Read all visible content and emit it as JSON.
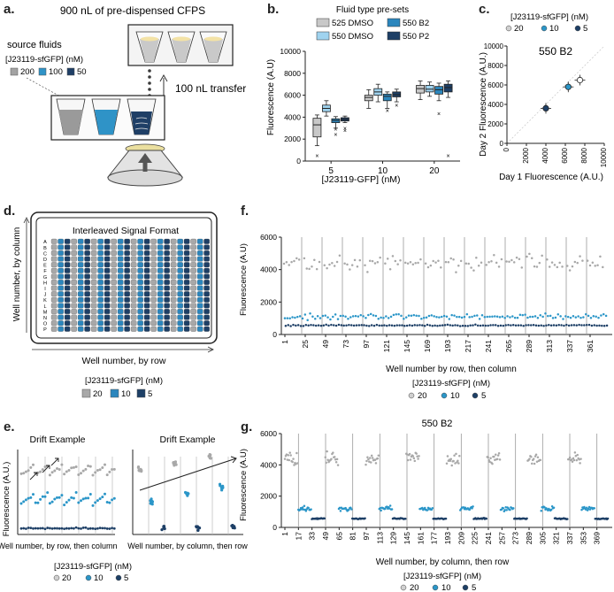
{
  "panel_labels": {
    "a": "a.",
    "b": "b.",
    "c": "c.",
    "d": "d.",
    "e": "e.",
    "f": "f.",
    "g": "g."
  },
  "panel_a": {
    "top_label": "900 nL of pre-dispensed CFPS",
    "source_title": "source fluids",
    "source_subtitle": "[J23119-sfGFP] (nM)",
    "legend": [
      {
        "label": "200",
        "color": "#a3a3a3"
      },
      {
        "label": "100",
        "color": "#2f93c7"
      },
      {
        "label": "50",
        "color": "#1f3f66"
      }
    ],
    "transfer_label": "100 nL transfer"
  },
  "colors": {
    "c20": "#a8a8a8",
    "c10": "#2b96c8",
    "c5": "#1d3f66",
    "dmso525": "#c8c8c8",
    "dmso550": "#9fd3ef",
    "b2": "#2b86bd",
    "p2": "#1d3f66"
  },
  "panel_b": {
    "chart_data": {
      "type": "box",
      "title": "Fluid type pre-sets",
      "legend": [
        "525 DMSO",
        "550 DMSO",
        "550 B2",
        "550 P2"
      ],
      "xlabel": "[J23119-GFP] (nM)",
      "ylabel": "Fluorescence (A.U)",
      "categories": [
        "5",
        "10",
        "20"
      ],
      "ylim": [
        0,
        10000
      ],
      "yticks": [
        0,
        2000,
        4000,
        6000,
        8000,
        10000
      ],
      "groups": [
        {
          "cat": "5",
          "boxes": [
            {
              "series": "525 DMSO",
              "min": 1400,
              "q1": 2200,
              "median": 3300,
              "q3": 3900,
              "max": 4200,
              "outliers": [
                500
              ]
            },
            {
              "series": "550 DMSO",
              "min": 4100,
              "q1": 4500,
              "median": 4800,
              "q3": 5100,
              "max": 5500,
              "outliers": []
            },
            {
              "series": "550 B2",
              "min": 3000,
              "q1": 3500,
              "median": 3700,
              "q3": 3850,
              "max": 4050,
              "outliers": [
                2900,
                2400
              ]
            },
            {
              "series": "550 P2",
              "min": 3500,
              "q1": 3650,
              "median": 3800,
              "q3": 3950,
              "max": 4100,
              "outliers": [
                3000,
                2800
              ]
            }
          ]
        },
        {
          "cat": "10",
          "boxes": [
            {
              "series": "525 DMSO",
              "min": 4800,
              "q1": 5500,
              "median": 5800,
              "q3": 6000,
              "max": 6500,
              "outliers": []
            },
            {
              "series": "550 DMSO",
              "min": 5400,
              "q1": 6000,
              "median": 6300,
              "q3": 6600,
              "max": 7000,
              "outliers": []
            },
            {
              "series": "550 B2",
              "min": 4800,
              "q1": 5500,
              "median": 5900,
              "q3": 6100,
              "max": 6300,
              "outliers": [
                4600
              ]
            },
            {
              "series": "550 P2",
              "min": 5400,
              "q1": 5850,
              "median": 6050,
              "q3": 6300,
              "max": 6550,
              "outliers": [
                5100
              ]
            }
          ]
        },
        {
          "cat": "20",
          "boxes": [
            {
              "series": "525 DMSO",
              "min": 5600,
              "q1": 6200,
              "median": 6600,
              "q3": 6900,
              "max": 7300,
              "outliers": []
            },
            {
              "series": "550 DMSO",
              "min": 5900,
              "q1": 6300,
              "median": 6550,
              "q3": 6900,
              "max": 7200,
              "outliers": []
            },
            {
              "series": "550 B2",
              "min": 5500,
              "q1": 6100,
              "median": 6500,
              "q3": 6800,
              "max": 7100,
              "outliers": [
                4300
              ]
            },
            {
              "series": "550 P2",
              "min": 5800,
              "q1": 6300,
              "median": 6700,
              "q3": 7000,
              "max": 7300,
              "outliers": [
                500
              ]
            }
          ]
        }
      ]
    }
  },
  "panel_c": {
    "chart_data": {
      "type": "scatter",
      "title": "550 B2",
      "legend_title": "[J23119-sfGFP] (nM)",
      "legend": [
        "20",
        "10",
        "5"
      ],
      "xlabel": "Day 1 Fluorescence (A.U.)",
      "ylabel": "Day 2 Fluorescence (A.U.)",
      "xlim": [
        0,
        10000
      ],
      "ylim": [
        0,
        10000
      ],
      "xticks": [
        0,
        2000,
        4000,
        6000,
        8000,
        10000
      ],
      "yticks": [
        0,
        2000,
        4000,
        6000,
        8000,
        10000
      ],
      "points": [
        {
          "x": 4000,
          "y": 3600,
          "conc": "5"
        },
        {
          "x": 6300,
          "y": 5800,
          "conc": "10"
        },
        {
          "x": 7500,
          "y": 6500,
          "conc": "20"
        }
      ]
    }
  },
  "panel_d": {
    "title": "Interleaved Signal Format",
    "rows": [
      "A",
      "B",
      "C",
      "D",
      "E",
      "F",
      "G",
      "H",
      "I",
      "J",
      "K",
      "L",
      "M",
      "N",
      "O",
      "P"
    ],
    "ylabel": "Well number, by column",
    "xlabel": "Well number, by row",
    "legend_title": "[J23119-sfGFP] (nM)",
    "legend": [
      "20",
      "10",
      "5"
    ]
  },
  "panel_e": {
    "left_title": "Drift Example",
    "right_title": "Drift Example",
    "ylabel": "Fluorescence (A.U.)",
    "left_xlabel": "Well number, by row, then column",
    "right_xlabel": "Well number, by column, then row",
    "legend_title": "[J23119-sfGFP] (nM)",
    "legend": [
      "20",
      "10",
      "5"
    ]
  },
  "panel_f": {
    "chart_data": {
      "type": "scatter",
      "ylabel": "Fluorescence (A.U)",
      "xlabel": "Well number by row, then column",
      "ylim": [
        0,
        6000
      ],
      "yticks": [
        0,
        2000,
        4000,
        6000
      ],
      "xticks": [
        "1",
        "25",
        "49",
        "73",
        "97",
        "121",
        "145",
        "169",
        "193",
        "217",
        "241",
        "265",
        "289",
        "313",
        "337",
        "361"
      ],
      "series": [
        {
          "name": "20",
          "mean": 4400,
          "spread": 700
        },
        {
          "name": "10",
          "mean": 1100,
          "spread": 250
        },
        {
          "name": "5",
          "mean": 560,
          "spread": 60
        }
      ]
    },
    "legend_title": "[J23119-sfGFP] (nM)",
    "legend": [
      "20",
      "10",
      "5"
    ]
  },
  "panel_g": {
    "chart_data": {
      "type": "scatter",
      "title": "550 B2",
      "ylabel": "Fluorescence (A.U)",
      "xlabel": "Well number, by column, then row",
      "ylim": [
        0,
        6000
      ],
      "yticks": [
        0,
        2000,
        4000,
        6000
      ],
      "xticks": [
        "1",
        "17",
        "33",
        "49",
        "65",
        "81",
        "97",
        "113",
        "129",
        "145",
        "161",
        "177",
        "193",
        "209",
        "225",
        "241",
        "257",
        "273",
        "289",
        "305",
        "321",
        "337",
        "353",
        "369"
      ],
      "block_order": [
        "20",
        "10",
        "5",
        "20",
        "10",
        "5",
        "20",
        "10",
        "5",
        "20",
        "10",
        "5",
        "20",
        "10",
        "5",
        "20",
        "10",
        "5",
        "20",
        "10",
        "5",
        "20",
        "10",
        "5"
      ],
      "series": [
        {
          "name": "20",
          "mean": 4400,
          "spread": 600
        },
        {
          "name": "10",
          "mean": 1200,
          "spread": 220
        },
        {
          "name": "5",
          "mean": 560,
          "spread": 50
        }
      ]
    },
    "legend_title": "[J23119-sfGFP] (nM)",
    "legend": [
      "20",
      "10",
      "5"
    ]
  }
}
